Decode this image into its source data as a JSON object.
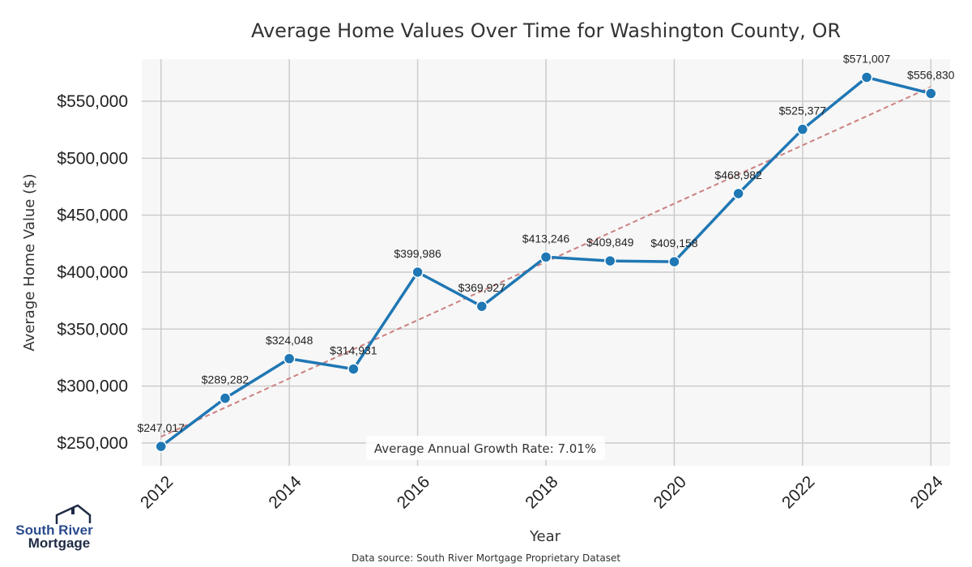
{
  "chart_data": {
    "type": "line",
    "title": "Average Home Values Over Time for Washington County, OR",
    "xlabel": "Year",
    "ylabel": "Average Home Value ($)",
    "x": [
      2012,
      2013,
      2014,
      2015,
      2016,
      2017,
      2018,
      2019,
      2020,
      2021,
      2022,
      2023,
      2024
    ],
    "values": [
      247017,
      289282,
      324048,
      314931,
      399986,
      369927,
      413246,
      409849,
      409158,
      468982,
      525377,
      571007,
      556830
    ],
    "data_labels": [
      "$247,017",
      "$289,282",
      "$324,048",
      "$314,931",
      "$399,986",
      "$369,927",
      "$413,246",
      "$409,849",
      "$409,158",
      "$468,982",
      "$525,377",
      "$571,007",
      "$556,830"
    ],
    "x_ticks": [
      "2012",
      "2014",
      "2016",
      "2018",
      "2020",
      "2022",
      "2024"
    ],
    "x_tick_values": [
      2012,
      2014,
      2016,
      2018,
      2020,
      2022,
      2024
    ],
    "y_ticks": [
      "$250,000",
      "$300,000",
      "$350,000",
      "$400,000",
      "$450,000",
      "$500,000",
      "$550,000"
    ],
    "y_tick_values": [
      250000,
      300000,
      350000,
      400000,
      450000,
      500000,
      550000
    ],
    "xlim": [
      2011.7,
      2024.3
    ],
    "ylim": [
      230000,
      587000
    ],
    "trend": {
      "start": [
        2012,
        255500
      ],
      "end": [
        2024,
        562500
      ]
    },
    "grid": true,
    "series_color": "#1f77b4",
    "trend_color": "#cd7f7f",
    "plot_background": "#f7f7f7",
    "grid_color": "#cccccc"
  },
  "annotation": {
    "growth_rate": "Average Annual Growth Rate: 7.01%"
  },
  "footer": {
    "source": "Data source: South River Mortgage Proprietary Dataset"
  },
  "logo": {
    "line1": "South River",
    "line2": "Mortgage",
    "color_primary": "#2a4b8d",
    "color_secondary": "#1f2a44"
  }
}
